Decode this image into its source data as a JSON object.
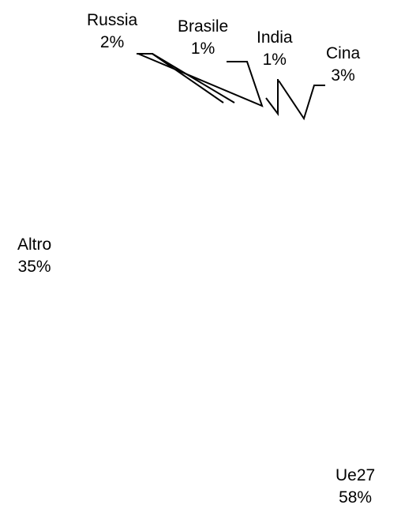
{
  "chart_data": {
    "type": "pie",
    "title": "",
    "slices": [
      {
        "label": "Ue27",
        "value": 58,
        "value_label": "58%"
      },
      {
        "label": "Altro",
        "value": 35,
        "value_label": "35%"
      },
      {
        "label": "Russia",
        "value": 2,
        "value_label": "2%"
      },
      {
        "label": "Brasile",
        "value": 1,
        "value_label": "1%"
      },
      {
        "label": "India",
        "value": 1,
        "value_label": "1%"
      },
      {
        "label": "Cina",
        "value": 3,
        "value_label": "3%"
      }
    ],
    "slice_fill": "#ffffff",
    "stroke_color": "#000000",
    "legend": "none"
  }
}
